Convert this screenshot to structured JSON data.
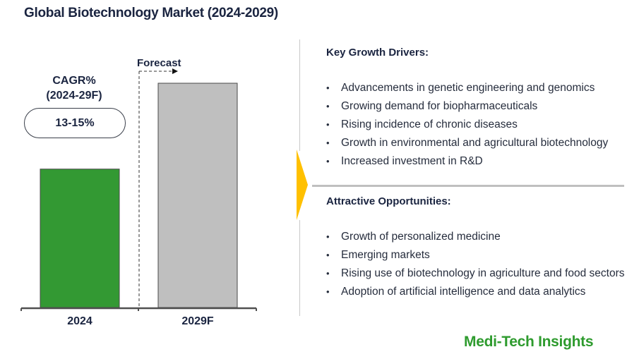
{
  "title": "Global Biotechnology Market (2024-2029)",
  "cagr": {
    "label_line1": "CAGR%",
    "label_line2": "(2024-29F)",
    "value": "13-15%"
  },
  "forecast_label": "Forecast",
  "key_growth_drivers": {
    "heading": "Key Growth Drivers:",
    "items": [
      "Advancements in genetic engineering and genomics",
      "Growing demand for biopharmaceuticals",
      "Rising incidence of chronic diseases",
      "Growth in environmental and agricultural biotechnology",
      "Increased investment in R&D"
    ]
  },
  "attractive_opportunities": {
    "heading": "Attractive Opportunities:",
    "items": [
      "Growth of personalized medicine",
      "Emerging markets",
      "Rising use of biotechnology in agriculture and food sectors",
      "Adoption of artificial intelligence and data analytics"
    ]
  },
  "brand": "Medi-Tech Insights",
  "colors": {
    "bar_2024": "#339933",
    "bar_2029F": "#bfbfbf",
    "accent_arrow": "#ffc000",
    "brand": "#2e9b2e"
  },
  "chart_data": {
    "type": "bar",
    "title": "Global Biotechnology Market (2024-2029)",
    "categories": [
      "2024",
      "2029F"
    ],
    "values": [
      1.0,
      1.62
    ],
    "value_note": "relative bar heights (no absolute values shown); 2029F bar is ~1.6x the 2024 bar",
    "xlabel": "",
    "ylabel": "",
    "ylim": [
      0,
      1.62
    ],
    "grid": false,
    "legend": "none",
    "annotations": [
      "CAGR% (2024-29F): 13-15%",
      "Forecast"
    ]
  }
}
